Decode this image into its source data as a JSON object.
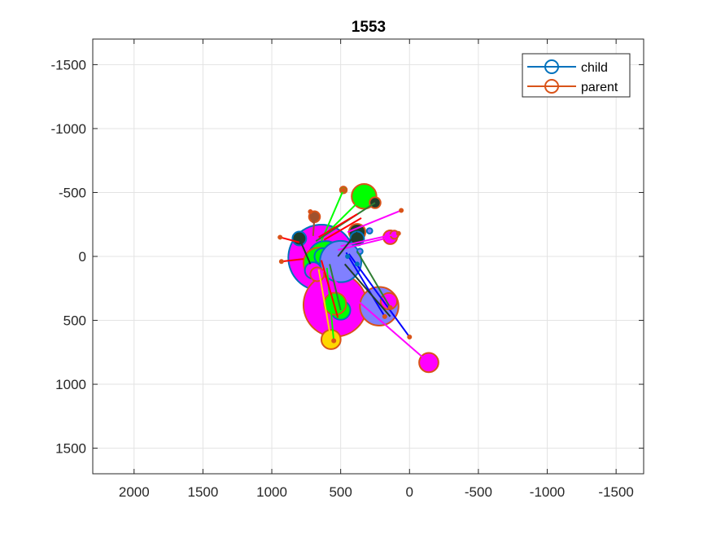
{
  "chart_data": {
    "type": "scatter",
    "title": "1553",
    "xlabel": "",
    "ylabel": "",
    "xlim": [
      2300,
      -1700
    ],
    "ylim": [
      -1700,
      1700
    ],
    "x_reversed": true,
    "y_reversed": true,
    "grid": true,
    "xticks": [
      2000,
      1500,
      1000,
      500,
      0,
      -500,
      -1000,
      -1500
    ],
    "xtick_labels": [
      "2000",
      "1500",
      "1000",
      "500",
      "0",
      "-500",
      "-1000",
      "-1500"
    ],
    "yticks": [
      -1500,
      -1000,
      -500,
      0,
      500,
      1000,
      1500
    ],
    "ytick_labels": [
      "-1500",
      "-1000",
      "-500",
      "0",
      "500",
      "1000",
      "1500"
    ],
    "legend": {
      "placement": "top-right",
      "entries": [
        {
          "label": "child",
          "color": "#0072BD"
        },
        {
          "label": "parent",
          "color": "#D95319"
        }
      ]
    },
    "colors": {
      "child_edge": "#0072BD",
      "parent_edge": "#D95319",
      "magenta": "#FF00FF",
      "green": "#00FF00",
      "periwinkle": "#8080FF",
      "gold": "#FFD700",
      "dark": "#1f3d2b",
      "blue": "#0000FF",
      "darkgreen": "#2E7D32",
      "red": "#FF0000",
      "brown": "#A0522D"
    },
    "circles": [
      {
        "x": 640,
        "y": 10,
        "r": 240,
        "fill": "magenta",
        "edge": "child_edge"
      },
      {
        "x": 540,
        "y": 380,
        "r": 230,
        "fill": "magenta",
        "edge": "parent_edge"
      },
      {
        "x": 610,
        "y": 20,
        "r": 130,
        "fill": "green",
        "edge": "child_edge"
      },
      {
        "x": 660,
        "y": 50,
        "r": 110,
        "fill": "green",
        "edge": "parent_edge"
      },
      {
        "x": 630,
        "y": 0,
        "r": 60,
        "fill": "green",
        "edge": "child_edge"
      },
      {
        "x": 500,
        "y": 40,
        "r": 150,
        "fill": "periwinkle",
        "edge": "child_edge"
      },
      {
        "x": 220,
        "y": 390,
        "r": 140,
        "fill": "periwinkle",
        "edge": "parent_edge"
      },
      {
        "x": 500,
        "y": 420,
        "r": 70,
        "fill": "green",
        "edge": "child_edge"
      },
      {
        "x": 540,
        "y": 370,
        "r": 80,
        "fill": "green",
        "edge": "parent_edge"
      },
      {
        "x": 330,
        "y": -470,
        "r": 90,
        "fill": "green",
        "edge": "parent_edge"
      },
      {
        "x": 150,
        "y": 350,
        "r": 60,
        "fill": "magenta",
        "edge": "parent_edge"
      },
      {
        "x": -140,
        "y": 830,
        "r": 70,
        "fill": "magenta",
        "edge": "parent_edge"
      },
      {
        "x": 570,
        "y": 650,
        "r": 70,
        "fill": "gold",
        "edge": "parent_edge"
      },
      {
        "x": 700,
        "y": 110,
        "r": 60,
        "fill": "magenta",
        "edge": "child_edge"
      },
      {
        "x": 670,
        "y": 140,
        "r": 50,
        "fill": "magenta",
        "edge": "parent_edge"
      },
      {
        "x": 140,
        "y": -150,
        "r": 50,
        "fill": "magenta",
        "edge": "parent_edge"
      },
      {
        "x": 380,
        "y": -190,
        "r": 60,
        "fill": "dark",
        "edge": "parent_edge"
      },
      {
        "x": 380,
        "y": -140,
        "r": 50,
        "fill": "dark",
        "edge": "child_edge"
      },
      {
        "x": 800,
        "y": -140,
        "r": 50,
        "fill": "dark",
        "edge": "child_edge"
      },
      {
        "x": 250,
        "y": -420,
        "r": 40,
        "fill": "dark",
        "edge": "parent_edge"
      },
      {
        "x": 690,
        "y": -310,
        "r": 40,
        "fill": "brown",
        "edge": "parent_edge"
      },
      {
        "x": 110,
        "y": -170,
        "r": 30,
        "fill": "magenta",
        "edge": "parent_edge"
      },
      {
        "x": 480,
        "y": -520,
        "r": 25,
        "fill": "green",
        "edge": "parent_edge"
      },
      {
        "x": 360,
        "y": -40,
        "r": 20,
        "fill": "periwinkle",
        "edge": "child_edge"
      },
      {
        "x": 290,
        "y": -200,
        "r": 20,
        "fill": "periwinkle",
        "edge": "child_edge"
      }
    ],
    "segments": [
      {
        "x1": 330,
        "y1": -470,
        "x2": 640,
        "y2": -140,
        "color": "green"
      },
      {
        "x1": 480,
        "y1": -520,
        "x2": 640,
        "y2": -120,
        "color": "green"
      },
      {
        "x1": 250,
        "y1": -420,
        "x2": 680,
        "y2": -120,
        "color": "darkgreen"
      },
      {
        "x1": 380,
        "y1": -330,
        "x2": 660,
        "y2": -150,
        "color": "red"
      },
      {
        "x1": 350,
        "y1": -300,
        "x2": 620,
        "y2": -130,
        "color": "red"
      },
      {
        "x1": 690,
        "y1": -310,
        "x2": 700,
        "y2": -160,
        "color": "brown"
      },
      {
        "x1": 720,
        "y1": -350,
        "x2": 700,
        "y2": -260,
        "color": "brown"
      },
      {
        "x1": 140,
        "y1": -150,
        "x2": 520,
        "y2": -50,
        "color": "magenta"
      },
      {
        "x1": 80,
        "y1": -180,
        "x2": 500,
        "y2": -80,
        "color": "magenta"
      },
      {
        "x1": 60,
        "y1": -360,
        "x2": 450,
        "y2": -190,
        "color": "magenta"
      },
      {
        "x1": 380,
        "y1": -190,
        "x2": 520,
        "y2": 0,
        "color": "dark"
      },
      {
        "x1": 800,
        "y1": -140,
        "x2": 720,
        "y2": 60,
        "color": "dark"
      },
      {
        "x1": 940,
        "y1": -150,
        "x2": 800,
        "y2": -110,
        "color": "red"
      },
      {
        "x1": 930,
        "y1": 40,
        "x2": 770,
        "y2": 20,
        "color": "red"
      },
      {
        "x1": 460,
        "y1": -30,
        "x2": 180,
        "y2": 470,
        "color": "blue"
      },
      {
        "x1": 440,
        "y1": -20,
        "x2": 0,
        "y2": 630,
        "color": "blue"
      },
      {
        "x1": 470,
        "y1": 60,
        "x2": 140,
        "y2": 470,
        "color": "dark"
      },
      {
        "x1": 380,
        "y1": -40,
        "x2": 140,
        "y2": 400,
        "color": "darkgreen"
      },
      {
        "x1": 630,
        "y1": 110,
        "x2": -140,
        "y2": 830,
        "color": "magenta"
      },
      {
        "x1": 660,
        "y1": 100,
        "x2": 570,
        "y2": 650,
        "color": "gold"
      },
      {
        "x1": 600,
        "y1": 90,
        "x2": 550,
        "y2": 660,
        "color": "green"
      },
      {
        "x1": 580,
        "y1": 60,
        "x2": 500,
        "y2": 420,
        "color": "darkgreen"
      },
      {
        "x1": 640,
        "y1": 30,
        "x2": 520,
        "y2": 480,
        "color": "red"
      }
    ],
    "dots": [
      {
        "x": 480,
        "y": -520,
        "color": "parent_edge"
      },
      {
        "x": 720,
        "y": -350,
        "color": "parent_edge"
      },
      {
        "x": 60,
        "y": -360,
        "color": "parent_edge"
      },
      {
        "x": 940,
        "y": -150,
        "color": "parent_edge"
      },
      {
        "x": 930,
        "y": 40,
        "color": "parent_edge"
      },
      {
        "x": 0,
        "y": 630,
        "color": "parent_edge"
      },
      {
        "x": 550,
        "y": 660,
        "color": "parent_edge"
      },
      {
        "x": 180,
        "y": 470,
        "color": "parent_edge"
      },
      {
        "x": 140,
        "y": 400,
        "color": "parent_edge"
      },
      {
        "x": 80,
        "y": -180,
        "color": "parent_edge"
      },
      {
        "x": 450,
        "y": 0,
        "color": "child_edge"
      },
      {
        "x": 380,
        "y": 60,
        "color": "child_edge"
      }
    ]
  }
}
